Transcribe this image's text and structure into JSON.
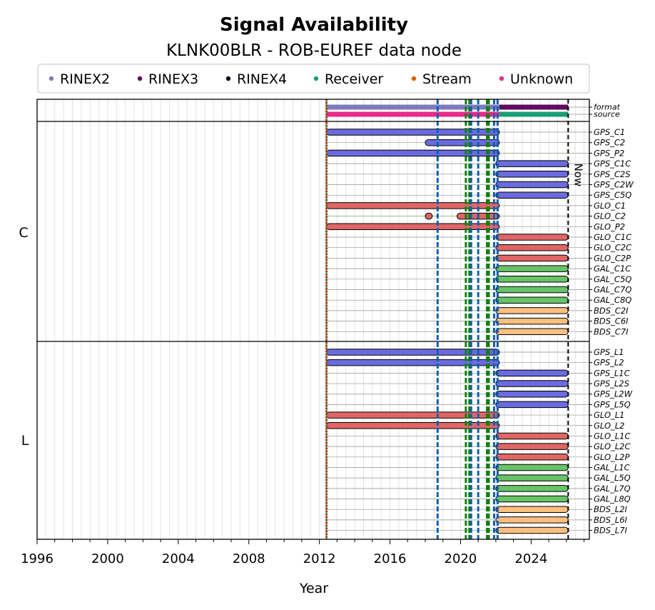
{
  "chart_data": {
    "type": "timeline",
    "title": "Signal Availability",
    "subtitle": "KLNK00BLR - ROB-EUREF data node",
    "xlabel": "Year",
    "xlim": [
      1996,
      2027.3
    ],
    "x_ticks": [
      1996,
      2000,
      2004,
      2008,
      2012,
      2016,
      2020,
      2024
    ],
    "now_label": "Now",
    "now_year": 2026.1,
    "legend": [
      {
        "label": "RINEX2",
        "color": "#7b7bbf"
      },
      {
        "label": "RINEX3",
        "color": "#5e0a5e"
      },
      {
        "label": "RINEX4",
        "color": "#1a0520"
      },
      {
        "label": "Receiver",
        "color": "#1b9e77"
      },
      {
        "label": "Stream",
        "color": "#d95f02"
      },
      {
        "label": "Unknown",
        "color": "#e7298a"
      }
    ],
    "meta_rows": [
      {
        "label": "format",
        "segments": [
          {
            "start": 2012.4,
            "end": 2022.2,
            "color": "#7b7bbf"
          },
          {
            "start": 2022.2,
            "end": 2026.1,
            "color": "#5e0a5e"
          }
        ]
      },
      {
        "label": "source",
        "segments": [
          {
            "start": 2012.4,
            "end": 2022.2,
            "color": "#e7298a"
          },
          {
            "start": 2022.2,
            "end": 2026.1,
            "color": "#1b9e77"
          }
        ]
      }
    ],
    "groups": [
      {
        "label": "C",
        "rows": [
          {
            "label": "GPS_C1",
            "color": "#6b6be0",
            "segments": [
              [
                2012.4,
                2022.2
              ]
            ]
          },
          {
            "label": "GPS_C2",
            "color": "#6b6be0",
            "segments": [
              [
                2018.0,
                2022.2
              ]
            ]
          },
          {
            "label": "GPS_P2",
            "color": "#6b6be0",
            "segments": [
              [
                2012.4,
                2022.2
              ]
            ]
          },
          {
            "label": "GPS_C1C",
            "color": "#6b6be0",
            "segments": [
              [
                2022.0,
                2026.1
              ]
            ]
          },
          {
            "label": "GPS_C2S",
            "color": "#6b6be0",
            "segments": [
              [
                2022.0,
                2026.1
              ]
            ]
          },
          {
            "label": "GPS_C2W",
            "color": "#6b6be0",
            "segments": [
              [
                2022.0,
                2026.1
              ]
            ]
          },
          {
            "label": "GPS_C5Q",
            "color": "#6b6be0",
            "segments": [
              [
                2022.0,
                2026.1
              ]
            ]
          },
          {
            "label": "GLO_C1",
            "color": "#e06666",
            "segments": [
              [
                2012.4,
                2022.2
              ]
            ]
          },
          {
            "label": "GLO_C2",
            "color": "#e06666",
            "segments": [
              [
                2018.0,
                2018.4
              ],
              [
                2019.8,
                2022.2
              ]
            ]
          },
          {
            "label": "GLO_P2",
            "color": "#e06666",
            "segments": [
              [
                2012.4,
                2022.2
              ]
            ]
          },
          {
            "label": "GLO_C1C",
            "color": "#e06666",
            "segments": [
              [
                2022.0,
                2026.1
              ]
            ]
          },
          {
            "label": "GLO_C2C",
            "color": "#e06666",
            "segments": [
              [
                2022.0,
                2026.1
              ]
            ]
          },
          {
            "label": "GLO_C2P",
            "color": "#e06666",
            "segments": [
              [
                2022.0,
                2026.1
              ]
            ]
          },
          {
            "label": "GAL_C1C",
            "color": "#66c466",
            "segments": [
              [
                2022.0,
                2026.1
              ]
            ]
          },
          {
            "label": "GAL_C5Q",
            "color": "#66c466",
            "segments": [
              [
                2022.0,
                2026.1
              ]
            ]
          },
          {
            "label": "GAL_C7Q",
            "color": "#66c466",
            "segments": [
              [
                2022.0,
                2026.1
              ]
            ]
          },
          {
            "label": "GAL_C8Q",
            "color": "#66c466",
            "segments": [
              [
                2022.0,
                2026.1
              ]
            ]
          },
          {
            "label": "BDS_C2I",
            "color": "#fdbf80",
            "segments": [
              [
                2022.0,
                2026.1
              ]
            ]
          },
          {
            "label": "BDS_C6I",
            "color": "#fdbf80",
            "segments": [
              [
                2022.0,
                2026.1
              ]
            ]
          },
          {
            "label": "BDS_C7I",
            "color": "#fdbf80",
            "segments": [
              [
                2022.0,
                2026.1
              ]
            ]
          }
        ]
      },
      {
        "label": "L",
        "rows": [
          {
            "label": "GPS_L1",
            "color": "#6b6be0",
            "segments": [
              [
                2012.4,
                2022.2
              ]
            ]
          },
          {
            "label": "GPS_L2",
            "color": "#6b6be0",
            "segments": [
              [
                2012.4,
                2022.2
              ]
            ]
          },
          {
            "label": "GPS_L1C",
            "color": "#6b6be0",
            "segments": [
              [
                2022.0,
                2026.1
              ]
            ]
          },
          {
            "label": "GPS_L2S",
            "color": "#6b6be0",
            "segments": [
              [
                2022.0,
                2026.1
              ]
            ]
          },
          {
            "label": "GPS_L2W",
            "color": "#6b6be0",
            "segments": [
              [
                2022.0,
                2026.1
              ]
            ]
          },
          {
            "label": "GPS_L5Q",
            "color": "#6b6be0",
            "segments": [
              [
                2022.0,
                2026.1
              ]
            ]
          },
          {
            "label": "GLO_L1",
            "color": "#e06666",
            "segments": [
              [
                2012.4,
                2022.2
              ]
            ]
          },
          {
            "label": "GLO_L2",
            "color": "#e06666",
            "segments": [
              [
                2012.4,
                2022.2
              ]
            ]
          },
          {
            "label": "GLO_L1C",
            "color": "#e06666",
            "segments": [
              [
                2022.0,
                2026.1
              ]
            ]
          },
          {
            "label": "GLO_L2C",
            "color": "#e06666",
            "segments": [
              [
                2022.0,
                2026.1
              ]
            ]
          },
          {
            "label": "GLO_L2P",
            "color": "#e06666",
            "segments": [
              [
                2022.0,
                2026.1
              ]
            ]
          },
          {
            "label": "GAL_L1C",
            "color": "#66c466",
            "segments": [
              [
                2022.0,
                2026.1
              ]
            ]
          },
          {
            "label": "GAL_L5Q",
            "color": "#66c466",
            "segments": [
              [
                2022.0,
                2026.1
              ]
            ]
          },
          {
            "label": "GAL_L7Q",
            "color": "#66c466",
            "segments": [
              [
                2022.0,
                2026.1
              ]
            ]
          },
          {
            "label": "GAL_L8Q",
            "color": "#66c466",
            "segments": [
              [
                2022.0,
                2026.1
              ]
            ]
          },
          {
            "label": "BDS_L2I",
            "color": "#fdbf80",
            "segments": [
              [
                2022.0,
                2026.1
              ]
            ]
          },
          {
            "label": "BDS_L6I",
            "color": "#fdbf80",
            "segments": [
              [
                2022.0,
                2026.1
              ]
            ]
          },
          {
            "label": "BDS_L7I",
            "color": "#fdbf80",
            "segments": [
              [
                2022.0,
                2026.1
              ]
            ]
          }
        ]
      }
    ],
    "event_lines": [
      {
        "year": 2012.4,
        "color": "#2ca02c",
        "style": "solid"
      },
      {
        "year": 2012.4,
        "color": "#d62728",
        "style": "dotted"
      },
      {
        "year": 2018.7,
        "color": "#1060b0",
        "style": "dashed"
      },
      {
        "year": 2020.3,
        "color": "#108010",
        "style": "dashed"
      },
      {
        "year": 2020.5,
        "color": "#108010",
        "style": "dashed"
      },
      {
        "year": 2020.6,
        "color": "#1060b0",
        "style": "dashed"
      },
      {
        "year": 2021.0,
        "color": "#1060b0",
        "style": "dashed"
      },
      {
        "year": 2021.5,
        "color": "#108010",
        "style": "dashed"
      },
      {
        "year": 2021.6,
        "color": "#108010",
        "style": "dashed"
      },
      {
        "year": 2021.9,
        "color": "#1060b0",
        "style": "dashed"
      },
      {
        "year": 2022.1,
        "color": "#1060b0",
        "style": "dashed"
      }
    ]
  }
}
